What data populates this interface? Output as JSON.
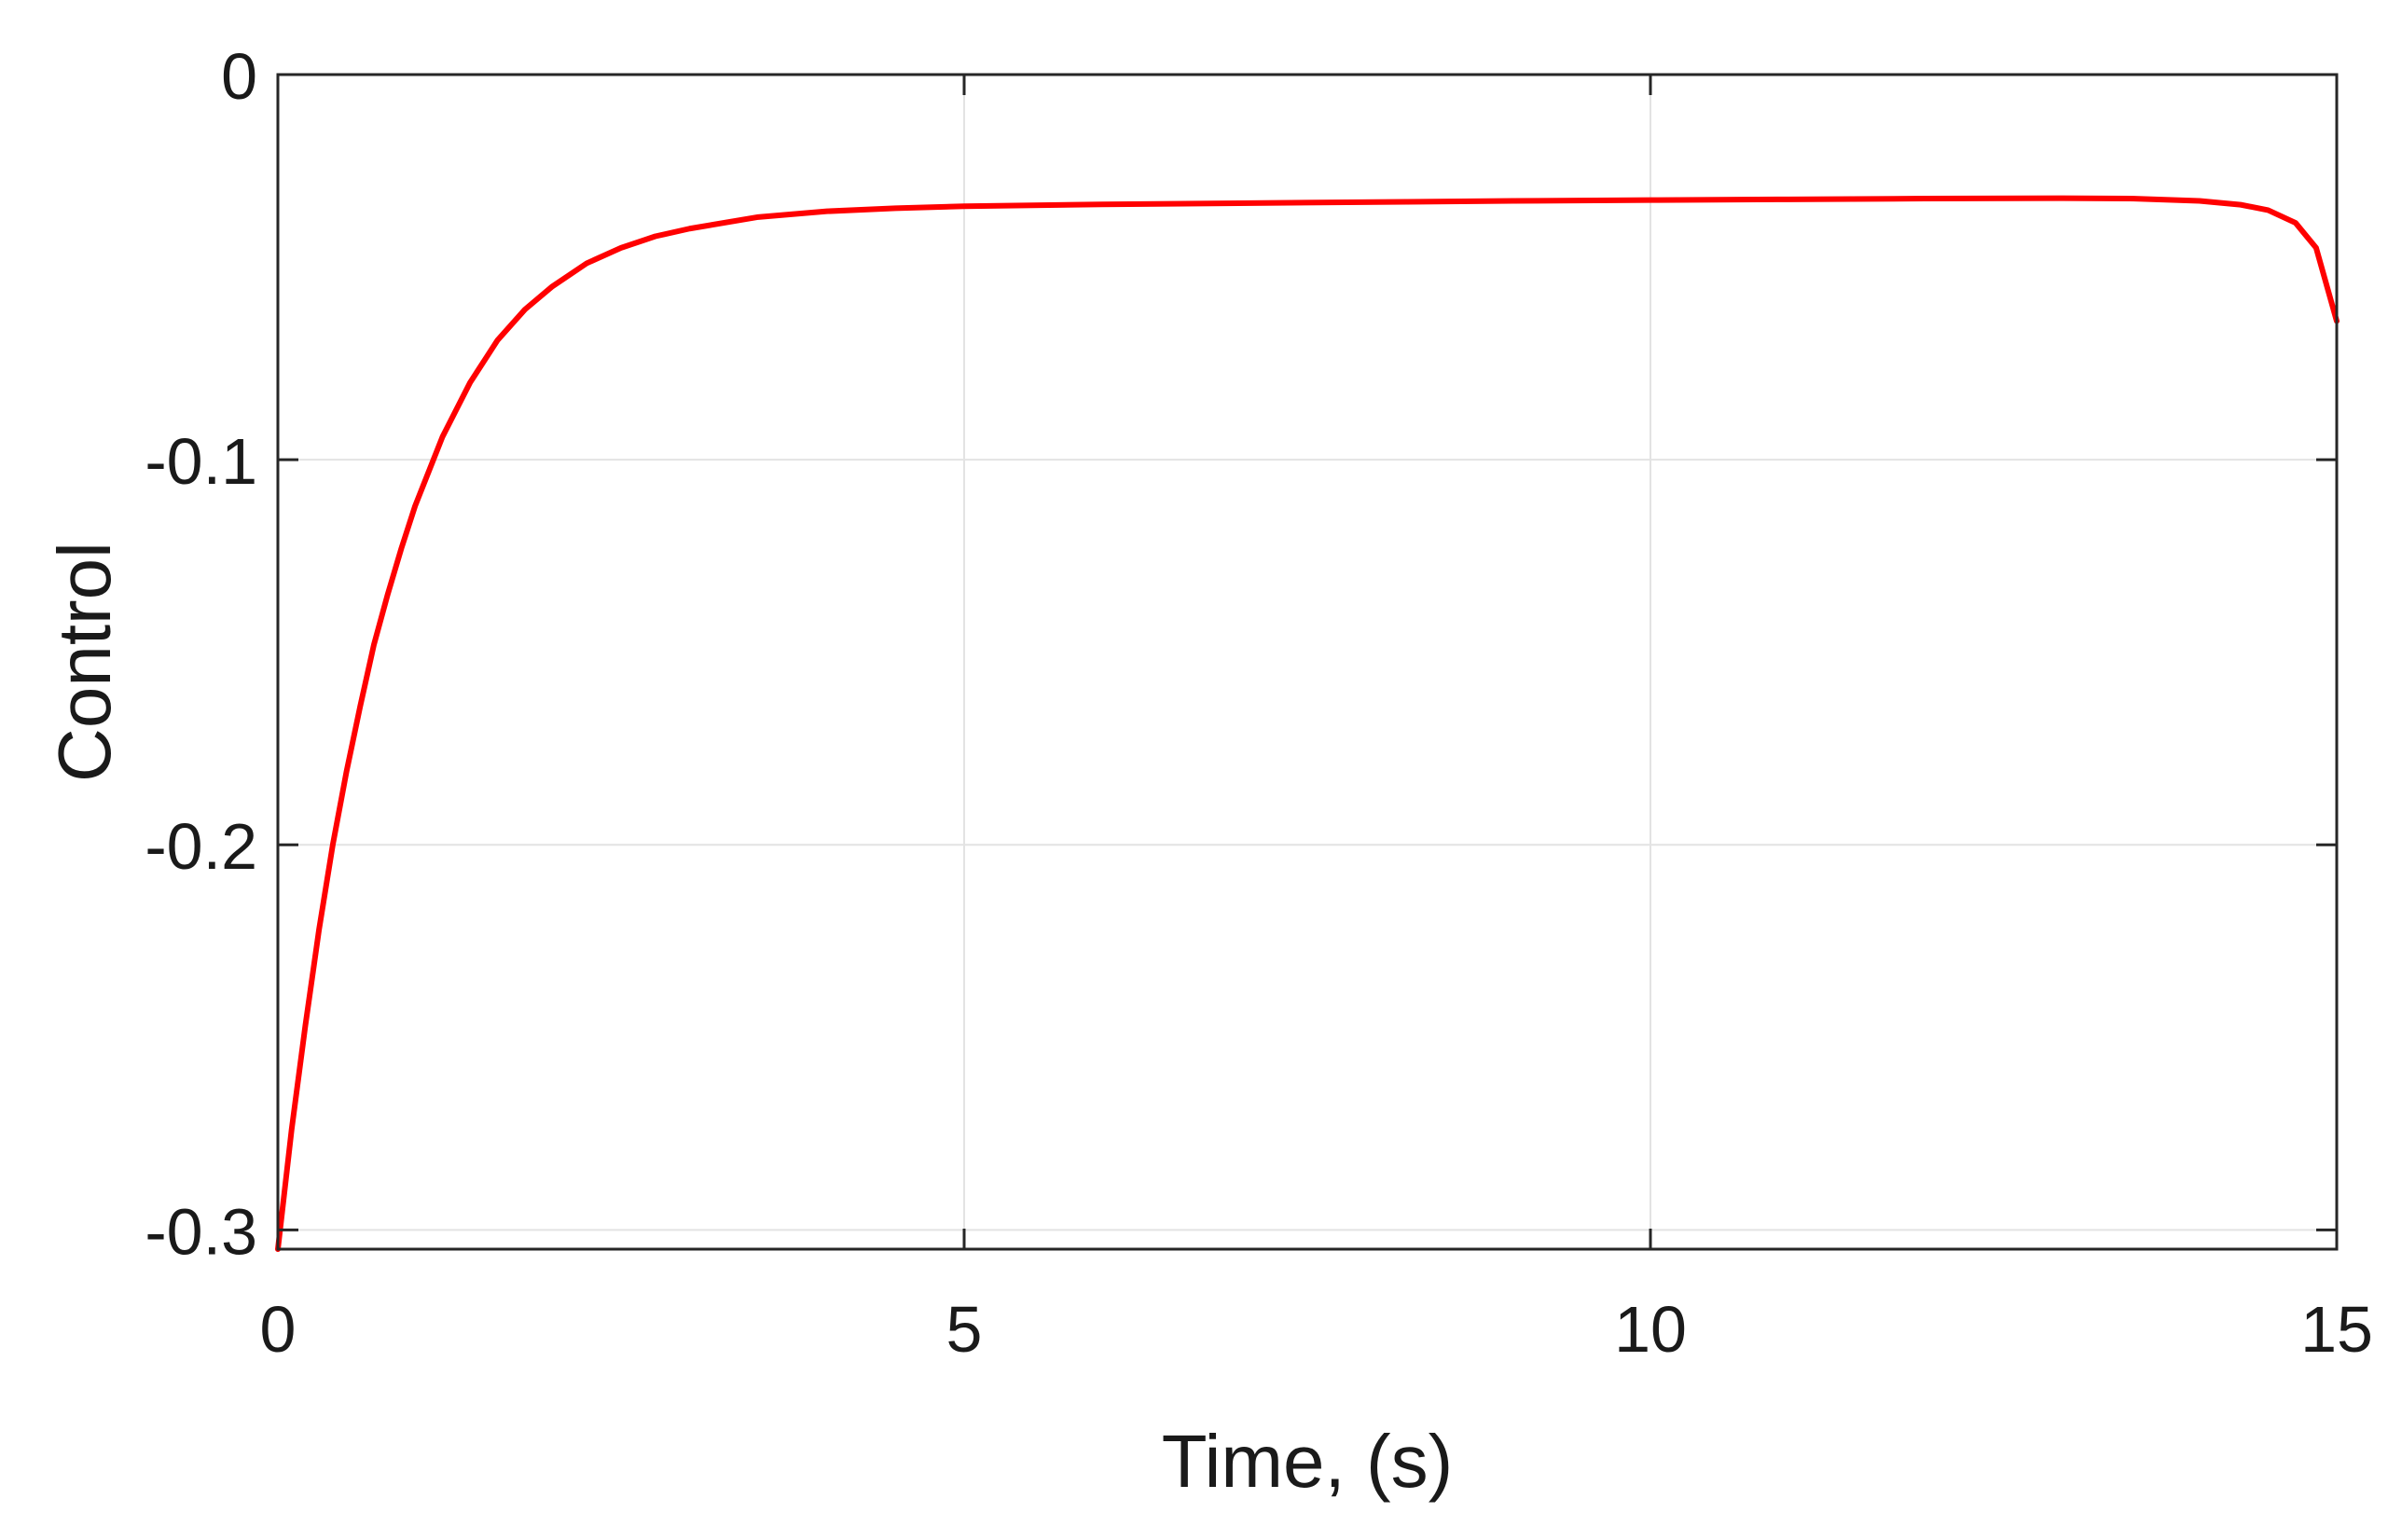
{
  "chart_data": {
    "type": "line",
    "title": "",
    "xlabel": "Time, (s)",
    "ylabel": "Control",
    "xlim": [
      0,
      15
    ],
    "ylim": [
      -0.305,
      0
    ],
    "xticks": [
      0,
      5,
      10,
      15
    ],
    "xtick_labels": [
      "0",
      "5",
      "10",
      "15"
    ],
    "yticks": [
      0,
      -0.1,
      -0.2,
      -0.3
    ],
    "ytick_labels": [
      "0",
      "-0.1",
      "-0.2",
      "-0.3"
    ],
    "grid": true,
    "colors": {
      "series": "#ff0000",
      "axes": "#262626",
      "grid": "#e3e3e3"
    },
    "series": [
      {
        "x": [
          0,
          0.1,
          0.2,
          0.3,
          0.4,
          0.5,
          0.6,
          0.7,
          0.8,
          0.9,
          1.0,
          1.2,
          1.4,
          1.6,
          1.8,
          2.0,
          2.25,
          2.5,
          2.75,
          3.0,
          3.5,
          4.0,
          4.5,
          5.0,
          6.0,
          7.0,
          8.0,
          9.0,
          10.0,
          11.0,
          12.0,
          13.0,
          13.5,
          14.0,
          14.3,
          14.5,
          14.7,
          14.85,
          15.0
        ],
        "y": [
          -0.305,
          -0.274,
          -0.247,
          -0.222,
          -0.2,
          -0.181,
          -0.164,
          -0.148,
          -0.135,
          -0.123,
          -0.112,
          -0.094,
          -0.08,
          -0.069,
          -0.061,
          -0.055,
          -0.049,
          -0.045,
          -0.042,
          -0.04,
          -0.037,
          -0.0355,
          -0.0347,
          -0.0342,
          -0.0337,
          -0.0334,
          -0.0331,
          -0.0328,
          -0.0326,
          -0.0324,
          -0.0322,
          -0.0321,
          -0.0322,
          -0.0328,
          -0.0338,
          -0.0352,
          -0.0385,
          -0.045,
          -0.064
        ]
      }
    ]
  }
}
